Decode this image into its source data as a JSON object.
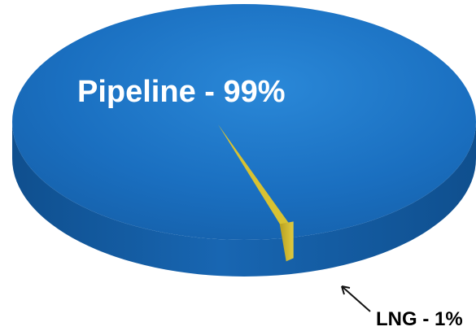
{
  "chart_data": {
    "type": "pie",
    "style": "3d",
    "slices": [
      {
        "label": "Pipeline - 99%",
        "name": "Pipeline",
        "value": 99,
        "color": "#1a6fc0"
      },
      {
        "label": "LNG - 1%",
        "name": "LNG",
        "value": 1,
        "color": "#d8c232"
      }
    ],
    "title": "",
    "legend": "none"
  }
}
